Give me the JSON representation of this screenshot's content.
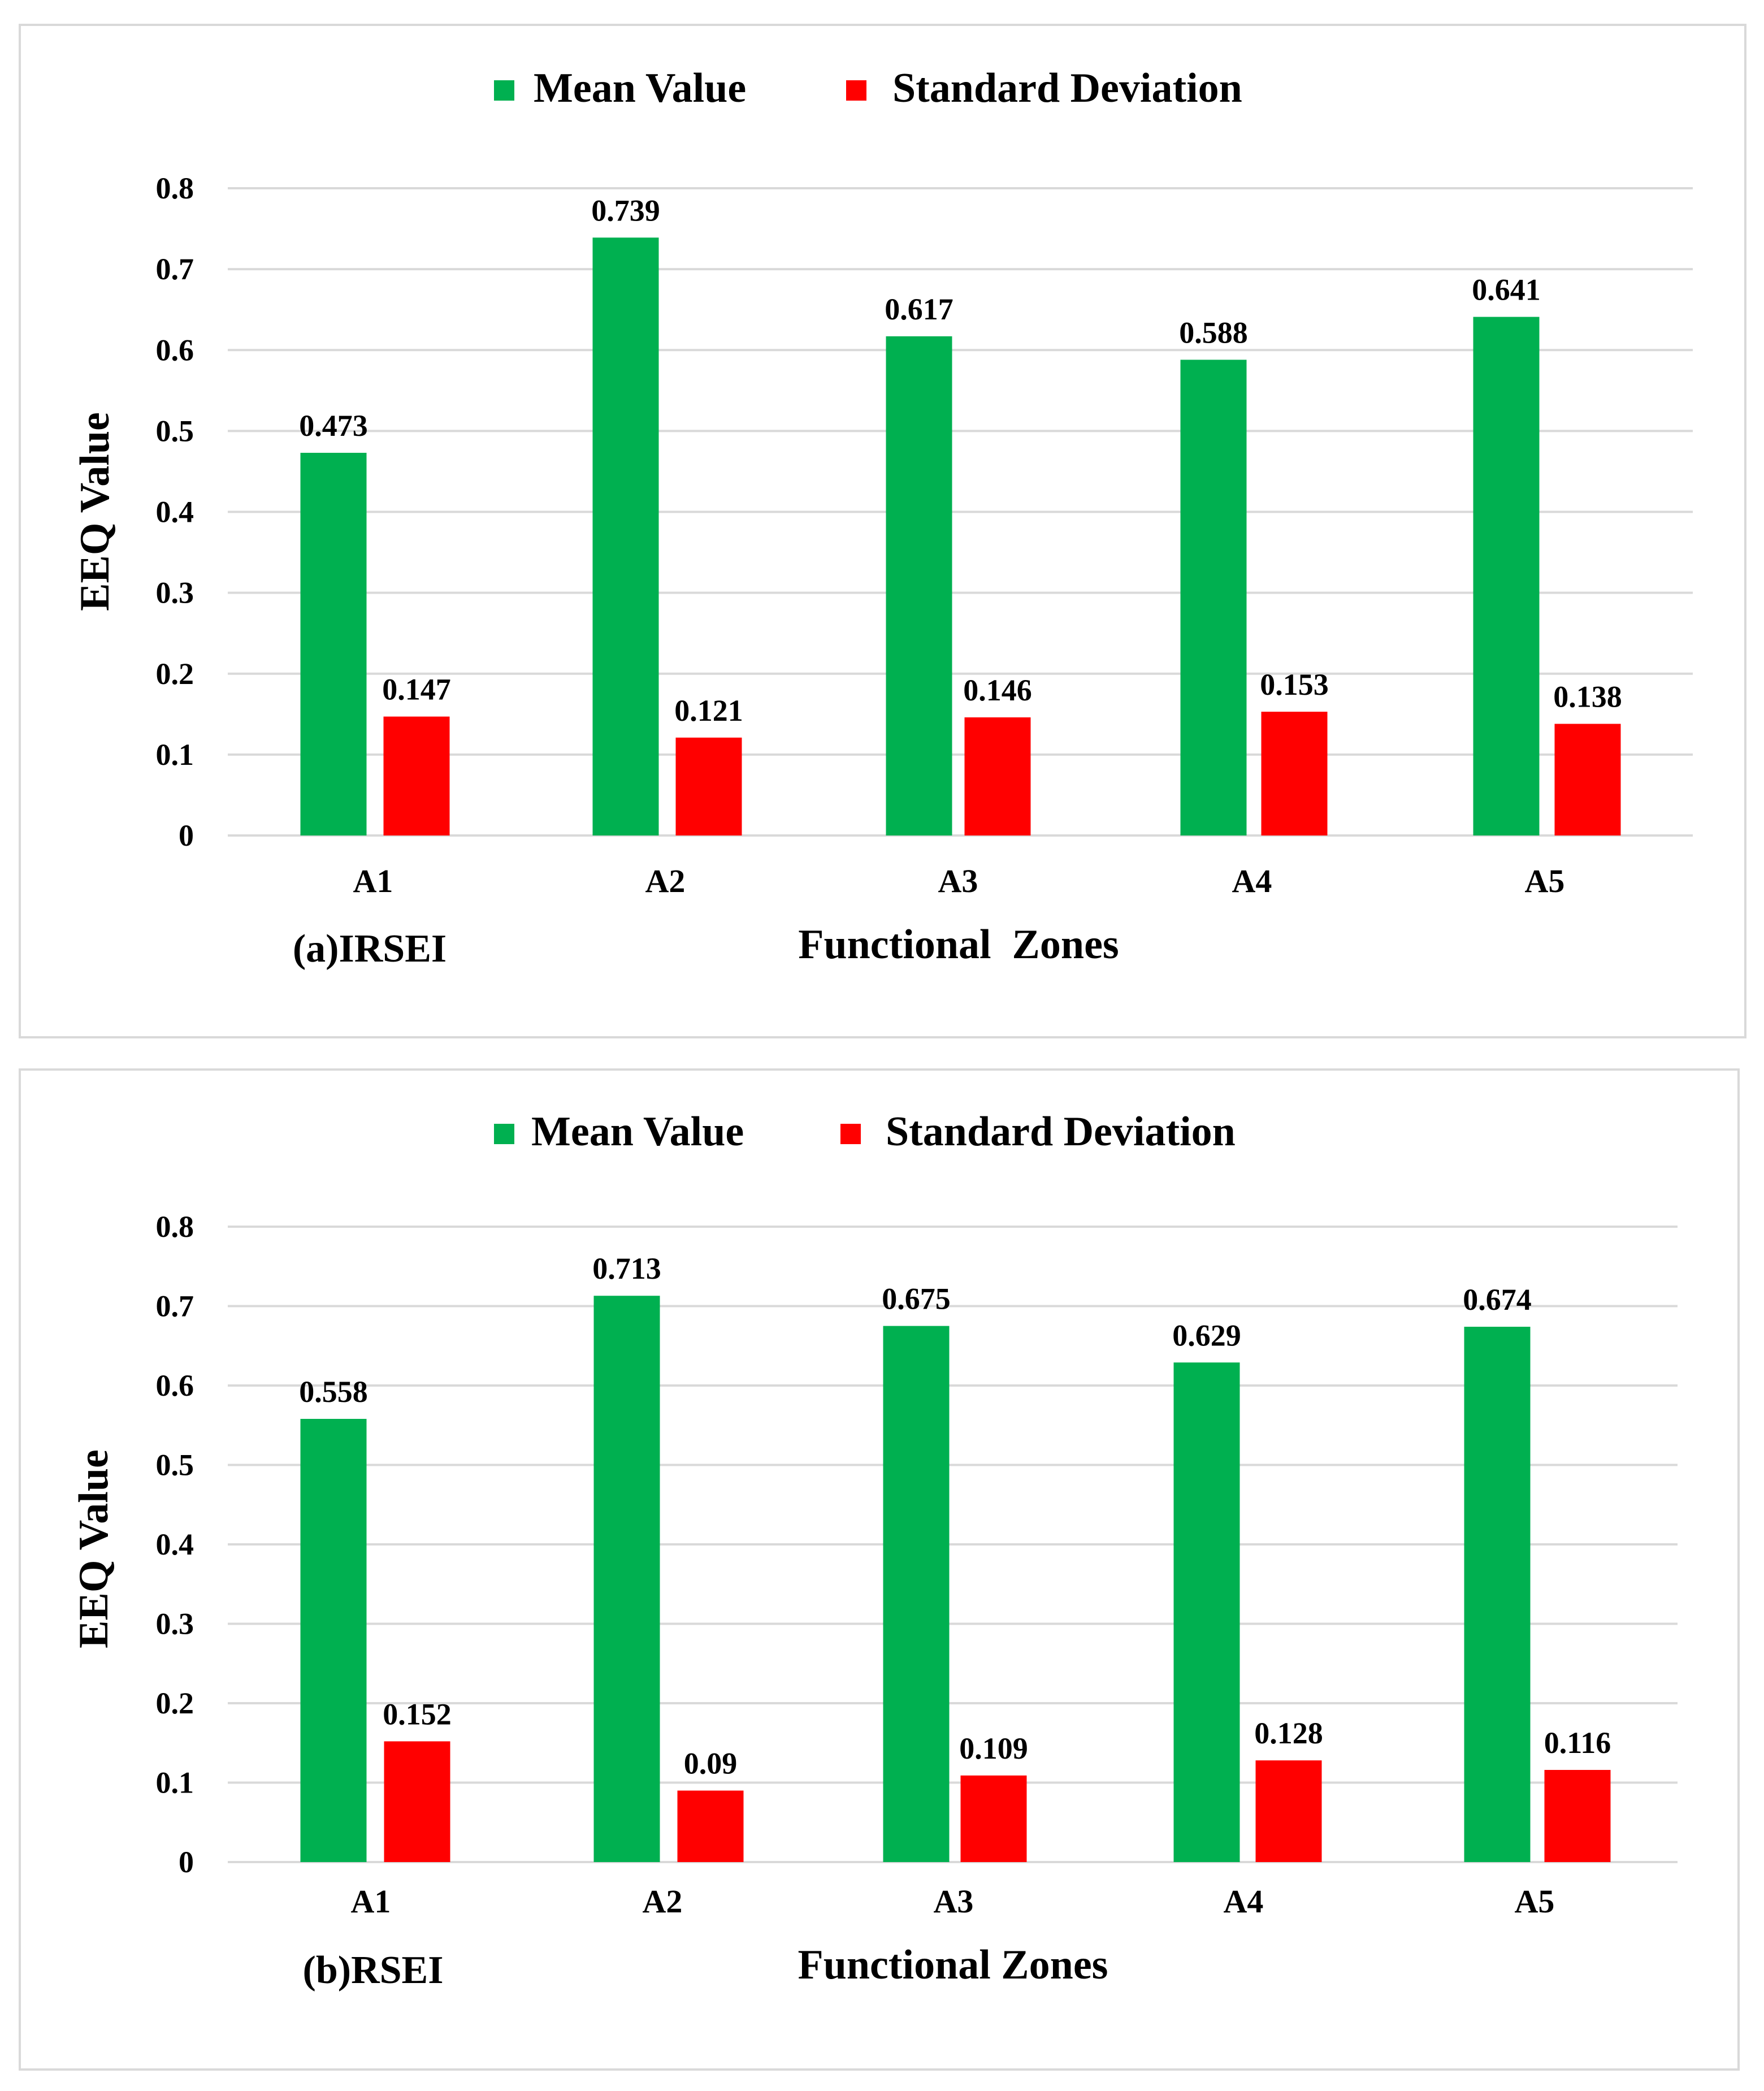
{
  "chart_data": [
    {
      "type": "bar",
      "panel_label": "(a)IRSEI",
      "xlabel": "Functional  Zones",
      "ylabel": "EEQ Value",
      "categories": [
        "A1",
        "A2",
        "A3",
        "A4",
        "A5"
      ],
      "series": [
        {
          "name": "Mean Value",
          "color": "#00b050",
          "values": [
            0.473,
            0.739,
            0.617,
            0.588,
            0.641
          ],
          "labels": [
            "0.473",
            "0.739",
            "0.617",
            "0.588",
            "0.641"
          ]
        },
        {
          "name": "Standard Deviation",
          "color": "#ff0000",
          "values": [
            0.147,
            0.121,
            0.146,
            0.153,
            0.138
          ],
          "labels": [
            "0.147",
            "0.121",
            "0.146",
            "0.153",
            "0.138"
          ]
        }
      ],
      "ylim": [
        0,
        0.8
      ],
      "yticks": [
        0,
        0.1,
        0.2,
        0.3,
        0.4,
        0.5,
        0.6,
        0.7,
        0.8
      ],
      "ytick_labels": [
        "0",
        "0.1",
        "0.2",
        "0.3",
        "0.4",
        "0.5",
        "0.6",
        "0.7",
        "0.8"
      ],
      "legend_position": "top-center",
      "grid": true
    },
    {
      "type": "bar",
      "panel_label": "(b)RSEI",
      "xlabel": "Functional Zones",
      "ylabel": "EEQ Value",
      "categories": [
        "A1",
        "A2",
        "A3",
        "A4",
        "A5"
      ],
      "series": [
        {
          "name": "Mean Value",
          "color": "#00b050",
          "values": [
            0.558,
            0.713,
            0.675,
            0.629,
            0.674
          ],
          "labels": [
            "0.558",
            "0.713",
            "0.675",
            "0.629",
            "0.674"
          ]
        },
        {
          "name": "Standard Deviation",
          "color": "#ff0000",
          "values": [
            0.152,
            0.09,
            0.109,
            0.128,
            0.116
          ],
          "labels": [
            "0.152",
            "0.09",
            "0.109",
            "0.128",
            "0.116"
          ]
        }
      ],
      "ylim": [
        0,
        0.8
      ],
      "yticks": [
        0,
        0.1,
        0.2,
        0.3,
        0.4,
        0.5,
        0.6,
        0.7,
        0.8
      ],
      "ytick_labels": [
        "0",
        "0.1",
        "0.2",
        "0.3",
        "0.4",
        "0.5",
        "0.6",
        "0.7",
        "0.8"
      ],
      "legend_position": "top-center",
      "grid": true
    }
  ]
}
